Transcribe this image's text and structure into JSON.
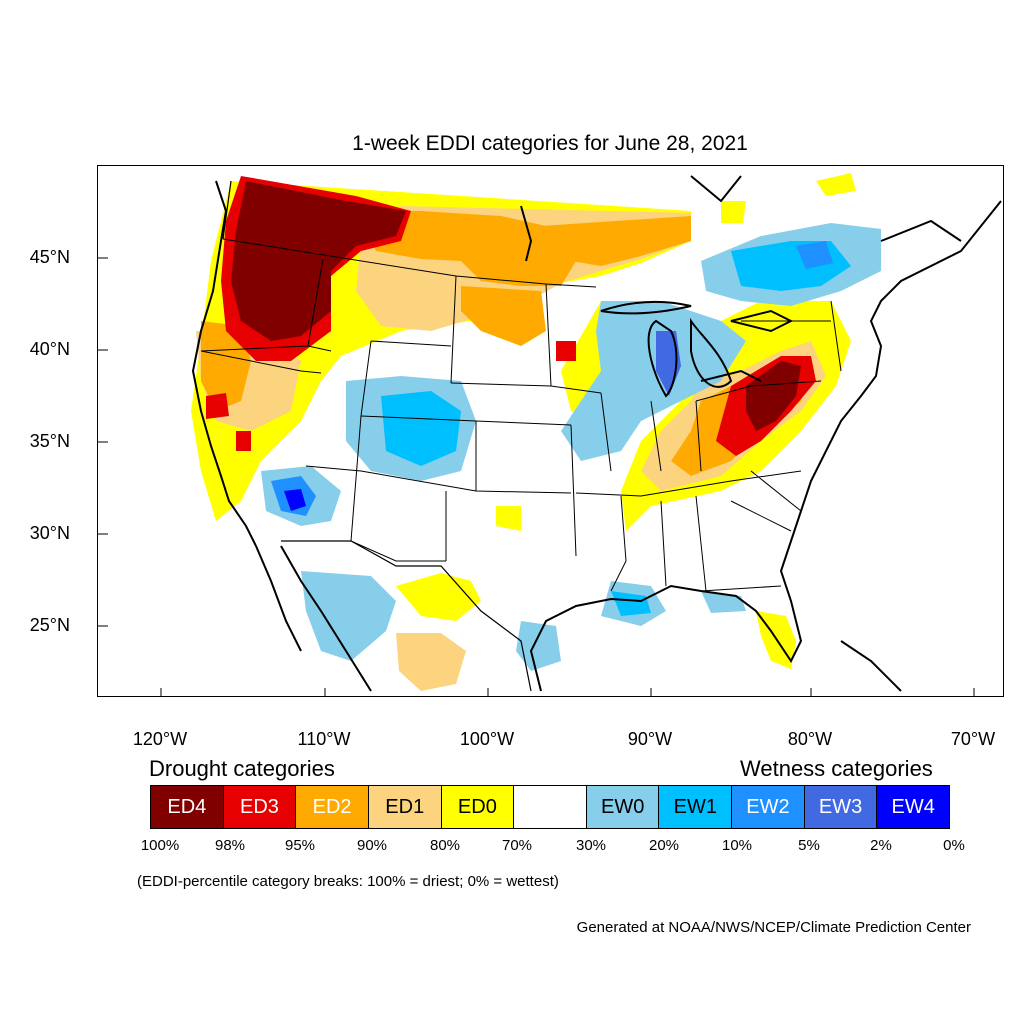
{
  "title": "1-week EDDI categories for June 28, 2021",
  "lat_labels": [
    "45°N",
    "40°N",
    "35°N",
    "30°N",
    "25°N"
  ],
  "lon_labels": [
    "120°W",
    "110°W",
    "100°W",
    "90°W",
    "80°W",
    "70°W"
  ],
  "legend": {
    "drought_heading": "Drought categories",
    "wetness_heading": "Wetness categories",
    "categories": [
      {
        "label": "ED4",
        "color": "#800000",
        "text_color": "#ffffff"
      },
      {
        "label": "ED3",
        "color": "#e60000",
        "text_color": "#ffffff"
      },
      {
        "label": "ED2",
        "color": "#ffaa00",
        "text_color": "#ffffff"
      },
      {
        "label": "ED1",
        "color": "#fcd37f",
        "text_color": "#000000"
      },
      {
        "label": "ED0",
        "color": "#ffff00",
        "text_color": "#000000"
      },
      {
        "label": "",
        "color": "#ffffff",
        "text_color": "#000000"
      },
      {
        "label": "EW0",
        "color": "#87ceeb",
        "text_color": "#000000"
      },
      {
        "label": "EW1",
        "color": "#00bfff",
        "text_color": "#000000"
      },
      {
        "label": "EW2",
        "color": "#1e90ff",
        "text_color": "#ffffff"
      },
      {
        "label": "EW3",
        "color": "#4169e1",
        "text_color": "#ffffff"
      },
      {
        "label": "EW4",
        "color": "#0000ff",
        "text_color": "#ffffff"
      }
    ],
    "breaks": [
      "100%",
      "98%",
      "95%",
      "90%",
      "80%",
      "70%",
      "30%",
      "20%",
      "10%",
      "5%",
      "2%",
      "0%"
    ]
  },
  "breaks_note": "(EDDI-percentile category breaks: 100% = driest; 0% = wettest)",
  "credit": "Generated at NOAA/NWS/NCEP/Climate Prediction Center"
}
